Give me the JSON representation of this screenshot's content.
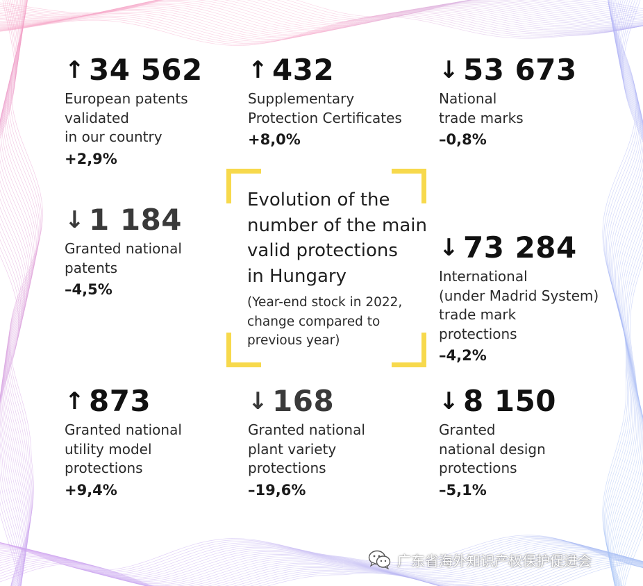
{
  "stats": [
    {
      "id": "european-patents",
      "direction": "up",
      "arrow": "↑",
      "value": "34 562",
      "label": [
        "European patents",
        "validated",
        "in our country"
      ],
      "change": "+2,9%"
    },
    {
      "id": "spc",
      "direction": "up",
      "arrow": "↑",
      "value": "432",
      "label": [
        "Supplementary",
        "Protection Certificates"
      ],
      "change": "+8,0%"
    },
    {
      "id": "national-trade-marks",
      "direction": "down",
      "arrow": "↓",
      "value": "53 673",
      "label": [
        "National",
        "trade marks"
      ],
      "change": "–0,8%"
    },
    {
      "id": "granted-national-patents",
      "direction": "down",
      "arrow": "↓",
      "value": "1 184",
      "label": [
        "Granted national",
        "patents"
      ],
      "change": "–4,5%"
    },
    {
      "id": "international-trade-marks",
      "direction": "down",
      "arrow": "↓",
      "value": "73 284",
      "label": [
        "International",
        "(under Madrid System)",
        "trade mark",
        "protections"
      ],
      "change": "–4,2%"
    },
    {
      "id": "utility-model",
      "direction": "up",
      "arrow": "↑",
      "value": "873",
      "label": [
        "Granted national",
        "utility model",
        "protections"
      ],
      "change": "+9,4%"
    },
    {
      "id": "plant-variety",
      "direction": "down",
      "arrow": "↓",
      "value": "168",
      "label": [
        "Granted national",
        "plant variety",
        "protections"
      ],
      "change": "–19,6%"
    },
    {
      "id": "design",
      "direction": "down",
      "arrow": "↓",
      "value": "8 150",
      "label": [
        "Granted",
        "national design",
        "protections"
      ],
      "change": "–5,1%"
    }
  ],
  "center": {
    "title": [
      "Evolution of the",
      "number of the main",
      "valid protections",
      "in Hungary"
    ],
    "subtitle": [
      "(Year-end stock in 2022,",
      "change compared to",
      "previous year)"
    ]
  },
  "watermark": {
    "icon": "wechat-icon",
    "text": "广东省海外知识产权保护促进会"
  },
  "colors": {
    "bracket": "#f7d94c",
    "text": "#1a1a1a",
    "grey_value": "#3a3a3a"
  }
}
